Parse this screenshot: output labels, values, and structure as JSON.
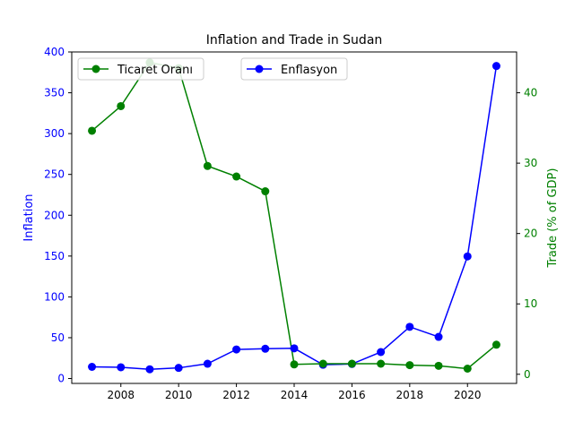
{
  "chart_data": {
    "type": "line",
    "title": "Inflation and Trade in Sudan",
    "xlabel": "",
    "ylabel_left": "Inflation",
    "ylabel_right": "Trade (% of GDP)",
    "x": [
      2007,
      2008,
      2009,
      2010,
      2011,
      2012,
      2013,
      2014,
      2015,
      2016,
      2017,
      2018,
      2019,
      2020,
      2021
    ],
    "xlim": [
      2006.3,
      2021.7
    ],
    "xticks": [
      2008,
      2010,
      2012,
      2014,
      2016,
      2018,
      2020
    ],
    "left_axis": {
      "ylim": [
        -6,
        400
      ],
      "yticks": [
        0,
        50,
        100,
        150,
        200,
        250,
        300,
        350,
        400
      ],
      "color": "#0000ff"
    },
    "right_axis": {
      "ylim": [
        -1.3,
        45.8
      ],
      "yticks": [
        0,
        10,
        20,
        30,
        40
      ],
      "color": "#008000"
    },
    "series": [
      {
        "name": "Enflasyon",
        "axis": "left",
        "color": "#0000ff",
        "values": [
          14.3,
          13.8,
          11.3,
          13.0,
          18.1,
          35.6,
          36.5,
          37.0,
          16.9,
          17.8,
          32.4,
          63.3,
          51.0,
          149.6,
          382.8
        ]
      },
      {
        "name": "Ticaret Oranı",
        "axis": "right",
        "color": "#008000",
        "values": [
          34.6,
          38.1,
          44.3,
          43.5,
          29.6,
          28.1,
          26.0,
          1.4,
          1.5,
          1.5,
          1.5,
          1.3,
          1.2,
          0.8,
          4.2
        ]
      }
    ],
    "legends": [
      {
        "placement": "upper-left",
        "series": "Ticaret Oranı"
      },
      {
        "placement": "upper-center",
        "series": "Enflasyon"
      }
    ]
  }
}
